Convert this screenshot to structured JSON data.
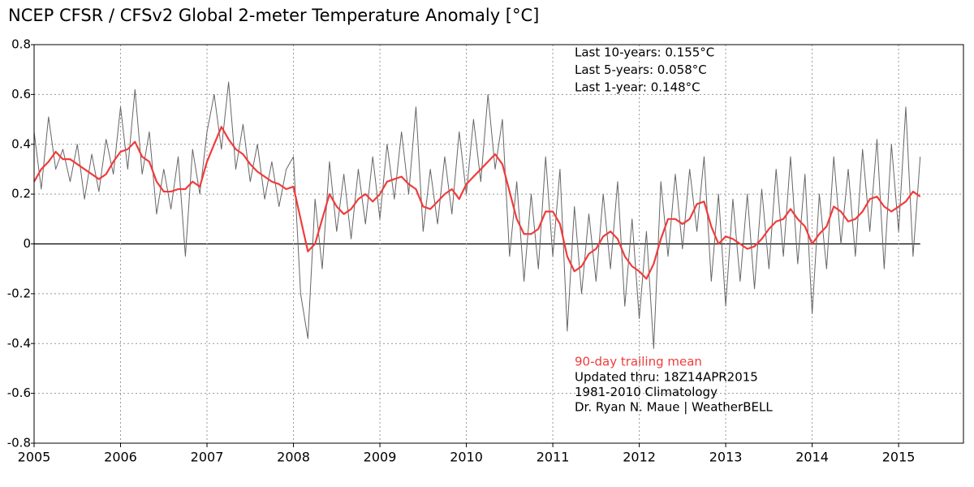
{
  "chart_data": {
    "type": "line",
    "title": "NCEP CFSR / CFSv2 Global 2-meter Temperature Anomaly [°C]",
    "annotations": [
      "Last 10-years: 0.155°C",
      "Last 5-years: 0.058°C",
      "Last 1-year:  0.148°C"
    ],
    "credits": [
      "Updated thru: 18Z14APR2015",
      "1981-2010 Climatology",
      "Dr. Ryan N. Maue | WeatherBELL"
    ],
    "xlim": [
      2005,
      2015.75
    ],
    "xticks": [
      2005,
      2006,
      2007,
      2008,
      2009,
      2010,
      2011,
      2012,
      2013,
      2014,
      2015
    ],
    "ylim": [
      -0.8,
      0.8
    ],
    "yticks": [
      -0.8,
      -0.6,
      -0.4,
      -0.2,
      0,
      0.2,
      0.4,
      0.6,
      0.8
    ],
    "grid": true,
    "x": [
      2005,
      2005.083,
      2005.167,
      2005.25,
      2005.333,
      2005.417,
      2005.5,
      2005.583,
      2005.667,
      2005.75,
      2005.833,
      2005.917,
      2006,
      2006.083,
      2006.167,
      2006.25,
      2006.333,
      2006.417,
      2006.5,
      2006.583,
      2006.667,
      2006.75,
      2006.833,
      2006.917,
      2007,
      2007.083,
      2007.167,
      2007.25,
      2007.333,
      2007.417,
      2007.5,
      2007.583,
      2007.667,
      2007.75,
      2007.833,
      2007.917,
      2008,
      2008.083,
      2008.167,
      2008.25,
      2008.333,
      2008.417,
      2008.5,
      2008.583,
      2008.667,
      2008.75,
      2008.833,
      2008.917,
      2009,
      2009.083,
      2009.167,
      2009.25,
      2009.333,
      2009.417,
      2009.5,
      2009.583,
      2009.667,
      2009.75,
      2009.833,
      2009.917,
      2010,
      2010.083,
      2010.167,
      2010.25,
      2010.333,
      2010.417,
      2010.5,
      2010.583,
      2010.667,
      2010.75,
      2010.833,
      2010.917,
      2011,
      2011.083,
      2011.167,
      2011.25,
      2011.333,
      2011.417,
      2011.5,
      2011.583,
      2011.667,
      2011.75,
      2011.833,
      2011.917,
      2012,
      2012.083,
      2012.167,
      2012.25,
      2012.333,
      2012.417,
      2012.5,
      2012.583,
      2012.667,
      2012.75,
      2012.833,
      2012.917,
      2013,
      2013.083,
      2013.167,
      2013.25,
      2013.333,
      2013.417,
      2013.5,
      2013.583,
      2013.667,
      2013.75,
      2013.833,
      2013.917,
      2014,
      2014.083,
      2014.167,
      2014.25,
      2014.333,
      2014.417,
      2014.5,
      2014.583,
      2014.667,
      2014.75,
      2014.833,
      2014.917,
      2015,
      2015.083,
      2015.167,
      2015.25
    ],
    "series": [
      {
        "color": "#666666",
        "values": [
          0.45,
          0.22,
          0.51,
          0.3,
          0.38,
          0.25,
          0.4,
          0.18,
          0.36,
          0.21,
          0.42,
          0.28,
          0.55,
          0.3,
          0.62,
          0.28,
          0.45,
          0.12,
          0.3,
          0.14,
          0.35,
          -0.05,
          0.38,
          0.2,
          0.45,
          0.6,
          0.38,
          0.65,
          0.3,
          0.48,
          0.25,
          0.4,
          0.18,
          0.33,
          0.15,
          0.3,
          0.35,
          -0.2,
          -0.38,
          0.18,
          -0.1,
          0.33,
          0.05,
          0.28,
          0.02,
          0.3,
          0.08,
          0.35,
          0.1,
          0.4,
          0.18,
          0.45,
          0.2,
          0.55,
          0.05,
          0.3,
          0.08,
          0.35,
          0.12,
          0.45,
          0.2,
          0.5,
          0.25,
          0.6,
          0.3,
          0.5,
          -0.05,
          0.25,
          -0.15,
          0.2,
          -0.1,
          0.35,
          -0.05,
          0.3,
          -0.35,
          0.15,
          -0.2,
          0.12,
          -0.15,
          0.2,
          -0.1,
          0.25,
          -0.25,
          0.1,
          -0.3,
          0.05,
          -0.42,
          0.25,
          -0.05,
          0.28,
          -0.02,
          0.3,
          0.05,
          0.35,
          -0.15,
          0.2,
          -0.25,
          0.18,
          -0.15,
          0.2,
          -0.18,
          0.22,
          -0.1,
          0.3,
          -0.05,
          0.35,
          -0.08,
          0.28,
          -0.28,
          0.2,
          -0.1,
          0.35,
          0.0,
          0.3,
          -0.05,
          0.38,
          0.05,
          0.42,
          -0.1,
          0.4,
          0.05,
          0.55,
          -0.05,
          0.35
        ]
      },
      {
        "name": "90-day trailing mean",
        "color": "#f03c3c",
        "values": [
          0.25,
          0.3,
          0.33,
          0.37,
          0.34,
          0.34,
          0.32,
          0.3,
          0.28,
          0.26,
          0.28,
          0.33,
          0.37,
          0.38,
          0.41,
          0.35,
          0.33,
          0.25,
          0.21,
          0.21,
          0.22,
          0.22,
          0.25,
          0.23,
          0.33,
          0.4,
          0.47,
          0.42,
          0.38,
          0.36,
          0.32,
          0.29,
          0.27,
          0.25,
          0.24,
          0.22,
          0.23,
          0.1,
          -0.03,
          0.0,
          0.1,
          0.2,
          0.15,
          0.12,
          0.14,
          0.18,
          0.2,
          0.17,
          0.2,
          0.25,
          0.26,
          0.27,
          0.24,
          0.22,
          0.15,
          0.14,
          0.17,
          0.2,
          0.22,
          0.18,
          0.24,
          0.27,
          0.3,
          0.33,
          0.36,
          0.32,
          0.21,
          0.1,
          0.04,
          0.04,
          0.06,
          0.13,
          0.13,
          0.08,
          -0.05,
          -0.11,
          -0.09,
          -0.04,
          -0.02,
          0.03,
          0.05,
          0.02,
          -0.05,
          -0.09,
          -0.11,
          -0.14,
          -0.08,
          0.02,
          0.1,
          0.1,
          0.08,
          0.1,
          0.16,
          0.17,
          0.07,
          0.0,
          0.03,
          0.02,
          0.0,
          -0.02,
          -0.01,
          0.02,
          0.06,
          0.09,
          0.1,
          0.14,
          0.1,
          0.07,
          0.0,
          0.04,
          0.07,
          0.15,
          0.13,
          0.09,
          0.1,
          0.13,
          0.18,
          0.19,
          0.15,
          0.13,
          0.15,
          0.17,
          0.21,
          0.19
        ]
      }
    ]
  }
}
